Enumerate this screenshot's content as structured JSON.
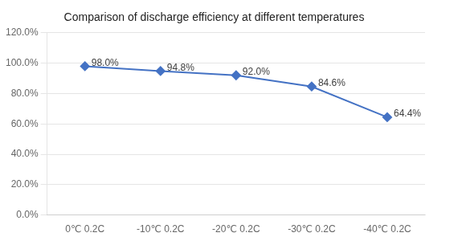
{
  "chart_data": {
    "type": "line",
    "title": "Comparison of discharge efficiency at different temperatures",
    "categories": [
      "0℃ 0.2C",
      "-10℃ 0.2C",
      "-20℃ 0.2C",
      "-30℃ 0.2C",
      "-40℃ 0.2C"
    ],
    "values": [
      0.98,
      0.948,
      0.92,
      0.846,
      0.644
    ],
    "value_labels": [
      "98.0%",
      "94.8%",
      "92.0%",
      "84.6%",
      "64.4%"
    ],
    "data_labels": true,
    "color": "#4472C4",
    "marker": "diamond",
    "ylim": [
      0.0,
      1.2
    ],
    "yticks": [
      {
        "value": 0.0,
        "label": "0.0%"
      },
      {
        "value": 0.2,
        "label": "20.0%"
      },
      {
        "value": 0.4,
        "label": "40.0%"
      },
      {
        "value": 0.6,
        "label": "60.0%"
      },
      {
        "value": 0.8,
        "label": "80.0%"
      },
      {
        "value": 1.0,
        "label": "100.0%"
      },
      {
        "value": 1.2,
        "label": "120.0%"
      }
    ],
    "grid": true
  }
}
